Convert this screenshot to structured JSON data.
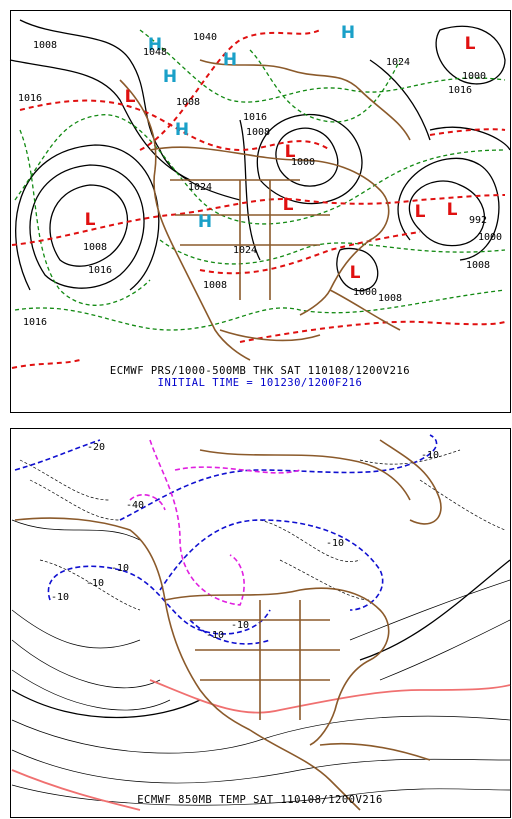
{
  "top_map": {
    "title": "ECMWF PRS/1000-500MB THK SAT 110108/1200V216",
    "subtitle": "INITIAL TIME = 101230/1200F216",
    "highs": [
      "H",
      "H",
      "H",
      "H",
      "H",
      "H"
    ],
    "lows": [
      "L",
      "L",
      "L",
      "L",
      "L",
      "L",
      "L",
      "L"
    ],
    "isobars": [
      "1040",
      "1048",
      "1008",
      "1024",
      "1016",
      "1000",
      "1016",
      "1008",
      "1016",
      "1008",
      "1000",
      "1024",
      "1008",
      "1016",
      "1016",
      "1008",
      "1000",
      "1008",
      "992",
      "1000",
      "1008",
      "1024"
    ]
  },
  "bottom_map": {
    "title": "ECMWF 850MB TEMP SAT 110108/1200V216",
    "labels": [
      "-20",
      "-40",
      "-10",
      "-10",
      "-10",
      "-10",
      "-10",
      "-10",
      "-10"
    ]
  }
}
